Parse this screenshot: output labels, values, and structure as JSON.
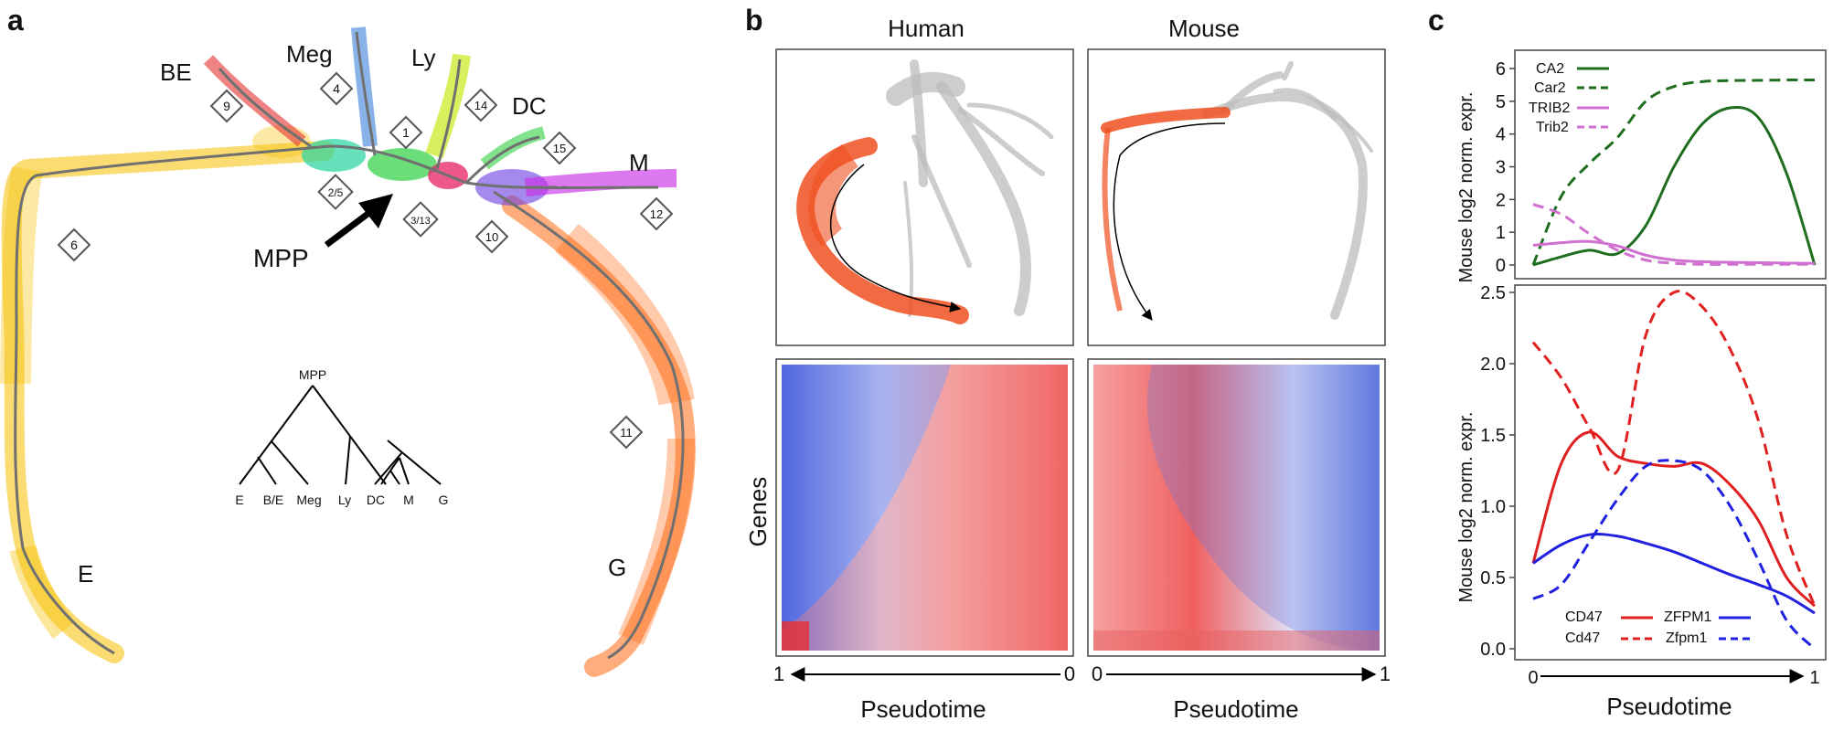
{
  "panel_a": {
    "letter": "a",
    "clusters": [
      "BE",
      "Meg",
      "Ly",
      "DC",
      "M",
      "E",
      "G"
    ],
    "cluster_ids": [
      "9",
      "4",
      "1",
      "14",
      "15",
      "2/5",
      "3/13",
      "10",
      "12",
      "6",
      "11"
    ],
    "mpp_arrow_label": "MPP",
    "tree": {
      "root": "MPP",
      "leaves": [
        "E",
        "B/E",
        "Meg",
        "Ly",
        "DC",
        "M",
        "G"
      ]
    },
    "colors": {
      "E": "#f5c000",
      "G": "#ff6a10",
      "BE": "#e53030",
      "Meg": "#3a7fd8",
      "Ly": "#c8e81a",
      "DC": "#2ed040",
      "M": "#c930e8",
      "MPP": "#27d4a0",
      "trajectory": "#777777"
    }
  },
  "panel_b": {
    "letter": "b",
    "titles": [
      "Human",
      "Mouse"
    ],
    "heatmap_ylabel": "Genes",
    "xlabel": "Pseudotime",
    "human_axis": {
      "left": "1",
      "right": "0"
    },
    "mouse_axis": {
      "left": "0",
      "right": "1"
    },
    "colors": {
      "highlight": "#f05020",
      "background_cells": "#bcbcbc",
      "high": "#f05050",
      "low": "#4e68e0"
    }
  },
  "panel_c": {
    "letter": "c",
    "xlabel": "Pseudotime",
    "x_ticks": [
      "0",
      "1"
    ],
    "chart_data": [
      {
        "type": "line",
        "ylabel": "Mouse log2 norm. expr.",
        "xlim": [
          0,
          1
        ],
        "ylim": [
          0,
          6
        ],
        "yticks": [
          "0",
          "1",
          "2",
          "3",
          "4",
          "5",
          "6"
        ],
        "x": [
          0,
          0.1,
          0.2,
          0.3,
          0.4,
          0.5,
          0.6,
          0.7,
          0.8,
          0.9,
          1.0
        ],
        "series": [
          {
            "name": "CA2",
            "color": "#1f6e1f",
            "dash": "solid",
            "values": [
              0.0,
              0.25,
              0.45,
              0.35,
              1.2,
              3.0,
              4.3,
              4.8,
              4.5,
              2.8,
              0.0
            ]
          },
          {
            "name": "Car2",
            "color": "#1f6e1f",
            "dash": "dashed",
            "values": [
              0.0,
              2.1,
              3.1,
              3.9,
              5.0,
              5.45,
              5.6,
              5.63,
              5.64,
              5.65,
              5.65
            ]
          },
          {
            "name": "TRIB2",
            "color": "#d070d0",
            "dash": "solid",
            "values": [
              0.6,
              0.68,
              0.72,
              0.58,
              0.3,
              0.15,
              0.1,
              0.08,
              0.07,
              0.06,
              0.05
            ]
          },
          {
            "name": "Trib2",
            "color": "#d070d0",
            "dash": "dashed",
            "values": [
              1.85,
              1.55,
              0.95,
              0.45,
              0.15,
              0.05,
              0.02,
              0.02,
              0.02,
              0.02,
              0.02
            ]
          }
        ]
      },
      {
        "type": "line",
        "ylabel": "Mouse log2 norm. expr.",
        "xlim": [
          0,
          1
        ],
        "ylim": [
          0,
          2.5
        ],
        "yticks": [
          "0.0",
          "0.5",
          "1.0",
          "1.5",
          "2.0",
          "2.5"
        ],
        "x": [
          0,
          0.1,
          0.2,
          0.3,
          0.4,
          0.5,
          0.6,
          0.7,
          0.8,
          0.9,
          1.0
        ],
        "series": [
          {
            "name": "CD47",
            "color": "#e02020",
            "dash": "solid",
            "values": [
              0.6,
              1.3,
              1.52,
              1.35,
              1.3,
              1.28,
              1.3,
              1.15,
              0.9,
              0.5,
              0.3
            ]
          },
          {
            "name": "Cd47",
            "color": "#e02020",
            "dash": "dashed",
            "values": [
              2.15,
              1.9,
              1.55,
              1.25,
              2.2,
              2.5,
              2.4,
              2.1,
              1.6,
              0.8,
              0.3
            ]
          },
          {
            "name": "ZFPM1",
            "color": "#2020e0",
            "dash": "solid",
            "values": [
              0.6,
              0.73,
              0.8,
              0.79,
              0.74,
              0.68,
              0.6,
              0.52,
              0.45,
              0.37,
              0.25
            ]
          },
          {
            "name": "Zfpm1",
            "color": "#2020e0",
            "dash": "dashed",
            "values": [
              0.35,
              0.45,
              0.75,
              1.05,
              1.28,
              1.32,
              1.25,
              1.0,
              0.62,
              0.2,
              0.0
            ]
          }
        ]
      }
    ]
  }
}
